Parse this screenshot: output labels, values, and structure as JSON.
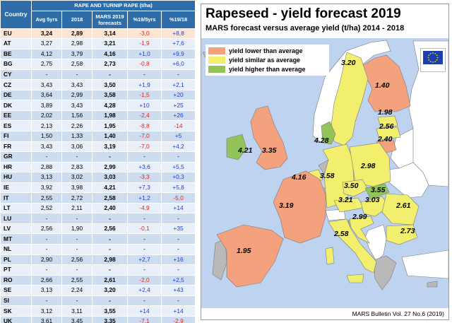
{
  "table": {
    "group_header": "RAPE AND TURNIP RAPE (t/ha)",
    "columns": {
      "country": "Country",
      "avg": "Avg 5yrs",
      "y2018": "2018",
      "forecast": "MARS 2019 forecasts",
      "pct_5yrs": "%19/5yrs",
      "pct_18": "%19/18"
    },
    "rows": [
      {
        "country": "EU",
        "avg": "3,24",
        "y2018": "2,89",
        "forecast": "3,14",
        "pct_5yrs": "-3,0",
        "pct_18": "+8,8"
      },
      {
        "country": "AT",
        "avg": "3,27",
        "y2018": "2,98",
        "forecast": "3,21",
        "pct_5yrs": "-1,9",
        "pct_18": "+7,6"
      },
      {
        "country": "BE",
        "avg": "4,12",
        "y2018": "3,79",
        "forecast": "4,16",
        "pct_5yrs": "+1,0",
        "pct_18": "+9,9"
      },
      {
        "country": "BG",
        "avg": "2,75",
        "y2018": "2,58",
        "forecast": "2,73",
        "pct_5yrs": "-0,8",
        "pct_18": "+6,0"
      },
      {
        "country": "CY",
        "avg": "-",
        "y2018": "-",
        "forecast": "-",
        "pct_5yrs": "-",
        "pct_18": "-"
      },
      {
        "country": "CZ",
        "avg": "3,43",
        "y2018": "3,43",
        "forecast": "3,50",
        "pct_5yrs": "+1,9",
        "pct_18": "+2,1"
      },
      {
        "country": "DE",
        "avg": "3,64",
        "y2018": "2,99",
        "forecast": "3,58",
        "pct_5yrs": "-1,5",
        "pct_18": "+20"
      },
      {
        "country": "DK",
        "avg": "3,89",
        "y2018": "3,43",
        "forecast": "4,28",
        "pct_5yrs": "+10",
        "pct_18": "+25"
      },
      {
        "country": "EE",
        "avg": "2,02",
        "y2018": "1,56",
        "forecast": "1,98",
        "pct_5yrs": "-2,4",
        "pct_18": "+26"
      },
      {
        "country": "ES",
        "avg": "2,13",
        "y2018": "2,26",
        "forecast": "1,95",
        "pct_5yrs": "-8,8",
        "pct_18": "-14"
      },
      {
        "country": "FI",
        "avg": "1,50",
        "y2018": "1,33",
        "forecast": "1,40",
        "pct_5yrs": "-7,0",
        "pct_18": "+5"
      },
      {
        "country": "FR",
        "avg": "3,43",
        "y2018": "3,06",
        "forecast": "3,19",
        "pct_5yrs": "-7,0",
        "pct_18": "+4,2"
      },
      {
        "country": "GR",
        "avg": "-",
        "y2018": "-",
        "forecast": "-",
        "pct_5yrs": "-",
        "pct_18": "-"
      },
      {
        "country": "HR",
        "avg": "2,88",
        "y2018": "2,83",
        "forecast": "2,99",
        "pct_5yrs": "+3,6",
        "pct_18": "+5,5"
      },
      {
        "country": "HU",
        "avg": "3,13",
        "y2018": "3,02",
        "forecast": "3,03",
        "pct_5yrs": "-3,3",
        "pct_18": "+0,3"
      },
      {
        "country": "IE",
        "avg": "3,92",
        "y2018": "3,98",
        "forecast": "4,21",
        "pct_5yrs": "+7,3",
        "pct_18": "+5,8"
      },
      {
        "country": "IT",
        "avg": "2,55",
        "y2018": "2,72",
        "forecast": "2,58",
        "pct_5yrs": "+1,2",
        "pct_18": "-5,0"
      },
      {
        "country": "LT",
        "avg": "2,52",
        "y2018": "2,11",
        "forecast": "2,40",
        "pct_5yrs": "-4,9",
        "pct_18": "+14"
      },
      {
        "country": "LU",
        "avg": "-",
        "y2018": "-",
        "forecast": "-",
        "pct_5yrs": "-",
        "pct_18": "-"
      },
      {
        "country": "LV",
        "avg": "2,56",
        "y2018": "1,90",
        "forecast": "2,56",
        "pct_5yrs": "-0,1",
        "pct_18": "+35"
      },
      {
        "country": "MT",
        "avg": "-",
        "y2018": "-",
        "forecast": "-",
        "pct_5yrs": "-",
        "pct_18": "-"
      },
      {
        "country": "NL",
        "avg": "-",
        "y2018": "-",
        "forecast": "-",
        "pct_5yrs": "-",
        "pct_18": "-"
      },
      {
        "country": "PL",
        "avg": "2,90",
        "y2018": "2,56",
        "forecast": "2,98",
        "pct_5yrs": "+2,7",
        "pct_18": "+16"
      },
      {
        "country": "PT",
        "avg": "-",
        "y2018": "-",
        "forecast": "-",
        "pct_5yrs": "-",
        "pct_18": "-"
      },
      {
        "country": "RO",
        "avg": "2,66",
        "y2018": "2,55",
        "forecast": "2,61",
        "pct_5yrs": "-2,0",
        "pct_18": "+2,5"
      },
      {
        "country": "SE",
        "avg": "3,13",
        "y2018": "2,24",
        "forecast": "3,20",
        "pct_5yrs": "+2,4",
        "pct_18": "+43"
      },
      {
        "country": "SI",
        "avg": "-",
        "y2018": "-",
        "forecast": "-",
        "pct_5yrs": "-",
        "pct_18": "-"
      },
      {
        "country": "SK",
        "avg": "3,12",
        "y2018": "3,11",
        "forecast": "3,55",
        "pct_5yrs": "+14",
        "pct_18": "+14"
      },
      {
        "country": "UK",
        "avg": "3,61",
        "y2018": "3,45",
        "forecast": "3,35",
        "pct_5yrs": "-7,1",
        "pct_18": "-2,9"
      }
    ]
  },
  "map": {
    "title": "Rapeseed - yield forecast 2019",
    "subtitle": "MARS forecast versus average yield (t/ha) 2014 - 2018",
    "legend": [
      {
        "label": "yield lower than average",
        "color": "#f4a27e"
      },
      {
        "label": "yield similar as average",
        "color": "#f3ef6e"
      },
      {
        "label": "yield higher than average",
        "color": "#92c45a"
      }
    ],
    "colors": {
      "sea": "#bed3ef",
      "no_data": "#b9b9b9",
      "non_eu": "#ffffff",
      "border": "#7a7a7a"
    },
    "labels": {
      "FI": "1.40",
      "SE": "3.20",
      "EE": "1.98",
      "LV": "2.56",
      "LT": "2.40",
      "DK": "4.28",
      "IE": "4.21",
      "UK": "3.35",
      "BE": "4.16",
      "DE": "3.58",
      "PL": "2.98",
      "CZ": "3.50",
      "SK": "3.55",
      "AT": "3.21",
      "HU": "3.03",
      "RO": "2.61",
      "BG": "2.73",
      "HR": "2.99",
      "IT": "2.58",
      "FR": "3.19",
      "ES": "1.95"
    },
    "footer": "MARS Bulletin Vol. 27 No.6 (2019)"
  }
}
